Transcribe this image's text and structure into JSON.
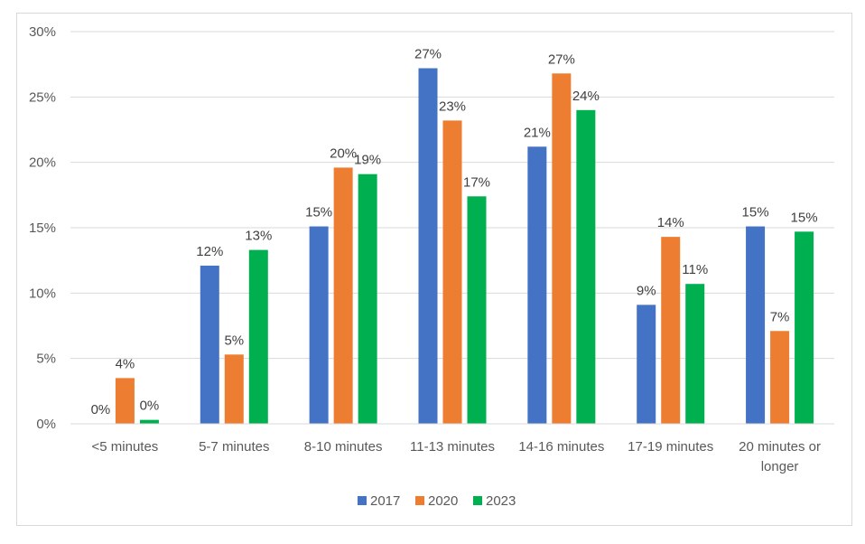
{
  "chart_data": {
    "type": "bar",
    "categories": [
      "<5 minutes",
      "5-7 minutes",
      "8-10 minutes",
      "11-13 minutes",
      "14-16 minutes",
      "17-19 minutes",
      "20 minutes or longer"
    ],
    "category_lines": [
      [
        "<5 minutes"
      ],
      [
        "5-7 minutes"
      ],
      [
        "8-10 minutes"
      ],
      [
        "11-13 minutes"
      ],
      [
        "14-16 minutes"
      ],
      [
        "17-19 minutes"
      ],
      [
        "20 minutes or",
        "longer"
      ]
    ],
    "series": [
      {
        "name": "2017",
        "color": "#4472c4",
        "values": [
          0.0,
          12.1,
          15.1,
          27.2,
          21.2,
          9.1,
          15.1
        ],
        "labels": [
          "0%",
          "12%",
          "15%",
          "27%",
          "21%",
          "9%",
          "15%"
        ]
      },
      {
        "name": "2020",
        "color": "#ed7d31",
        "values": [
          3.5,
          5.3,
          19.6,
          23.2,
          26.8,
          14.3,
          7.1
        ],
        "labels": [
          "4%",
          "5%",
          "20%",
          "23%",
          "27%",
          "14%",
          "7%"
        ]
      },
      {
        "name": "2023",
        "color": "#00b050",
        "values": [
          0.3,
          13.3,
          19.1,
          17.4,
          24.0,
          10.7,
          14.7
        ],
        "labels": [
          "0%",
          "13%",
          "19%",
          "17%",
          "24%",
          "11%",
          "15%"
        ]
      }
    ],
    "y_ticks": [
      "0%",
      "5%",
      "10%",
      "15%",
      "20%",
      "25%",
      "30%"
    ],
    "ylim": [
      0,
      30
    ],
    "grid": true,
    "legend_position": "bottom",
    "title": "",
    "xlabel": "",
    "ylabel": ""
  }
}
